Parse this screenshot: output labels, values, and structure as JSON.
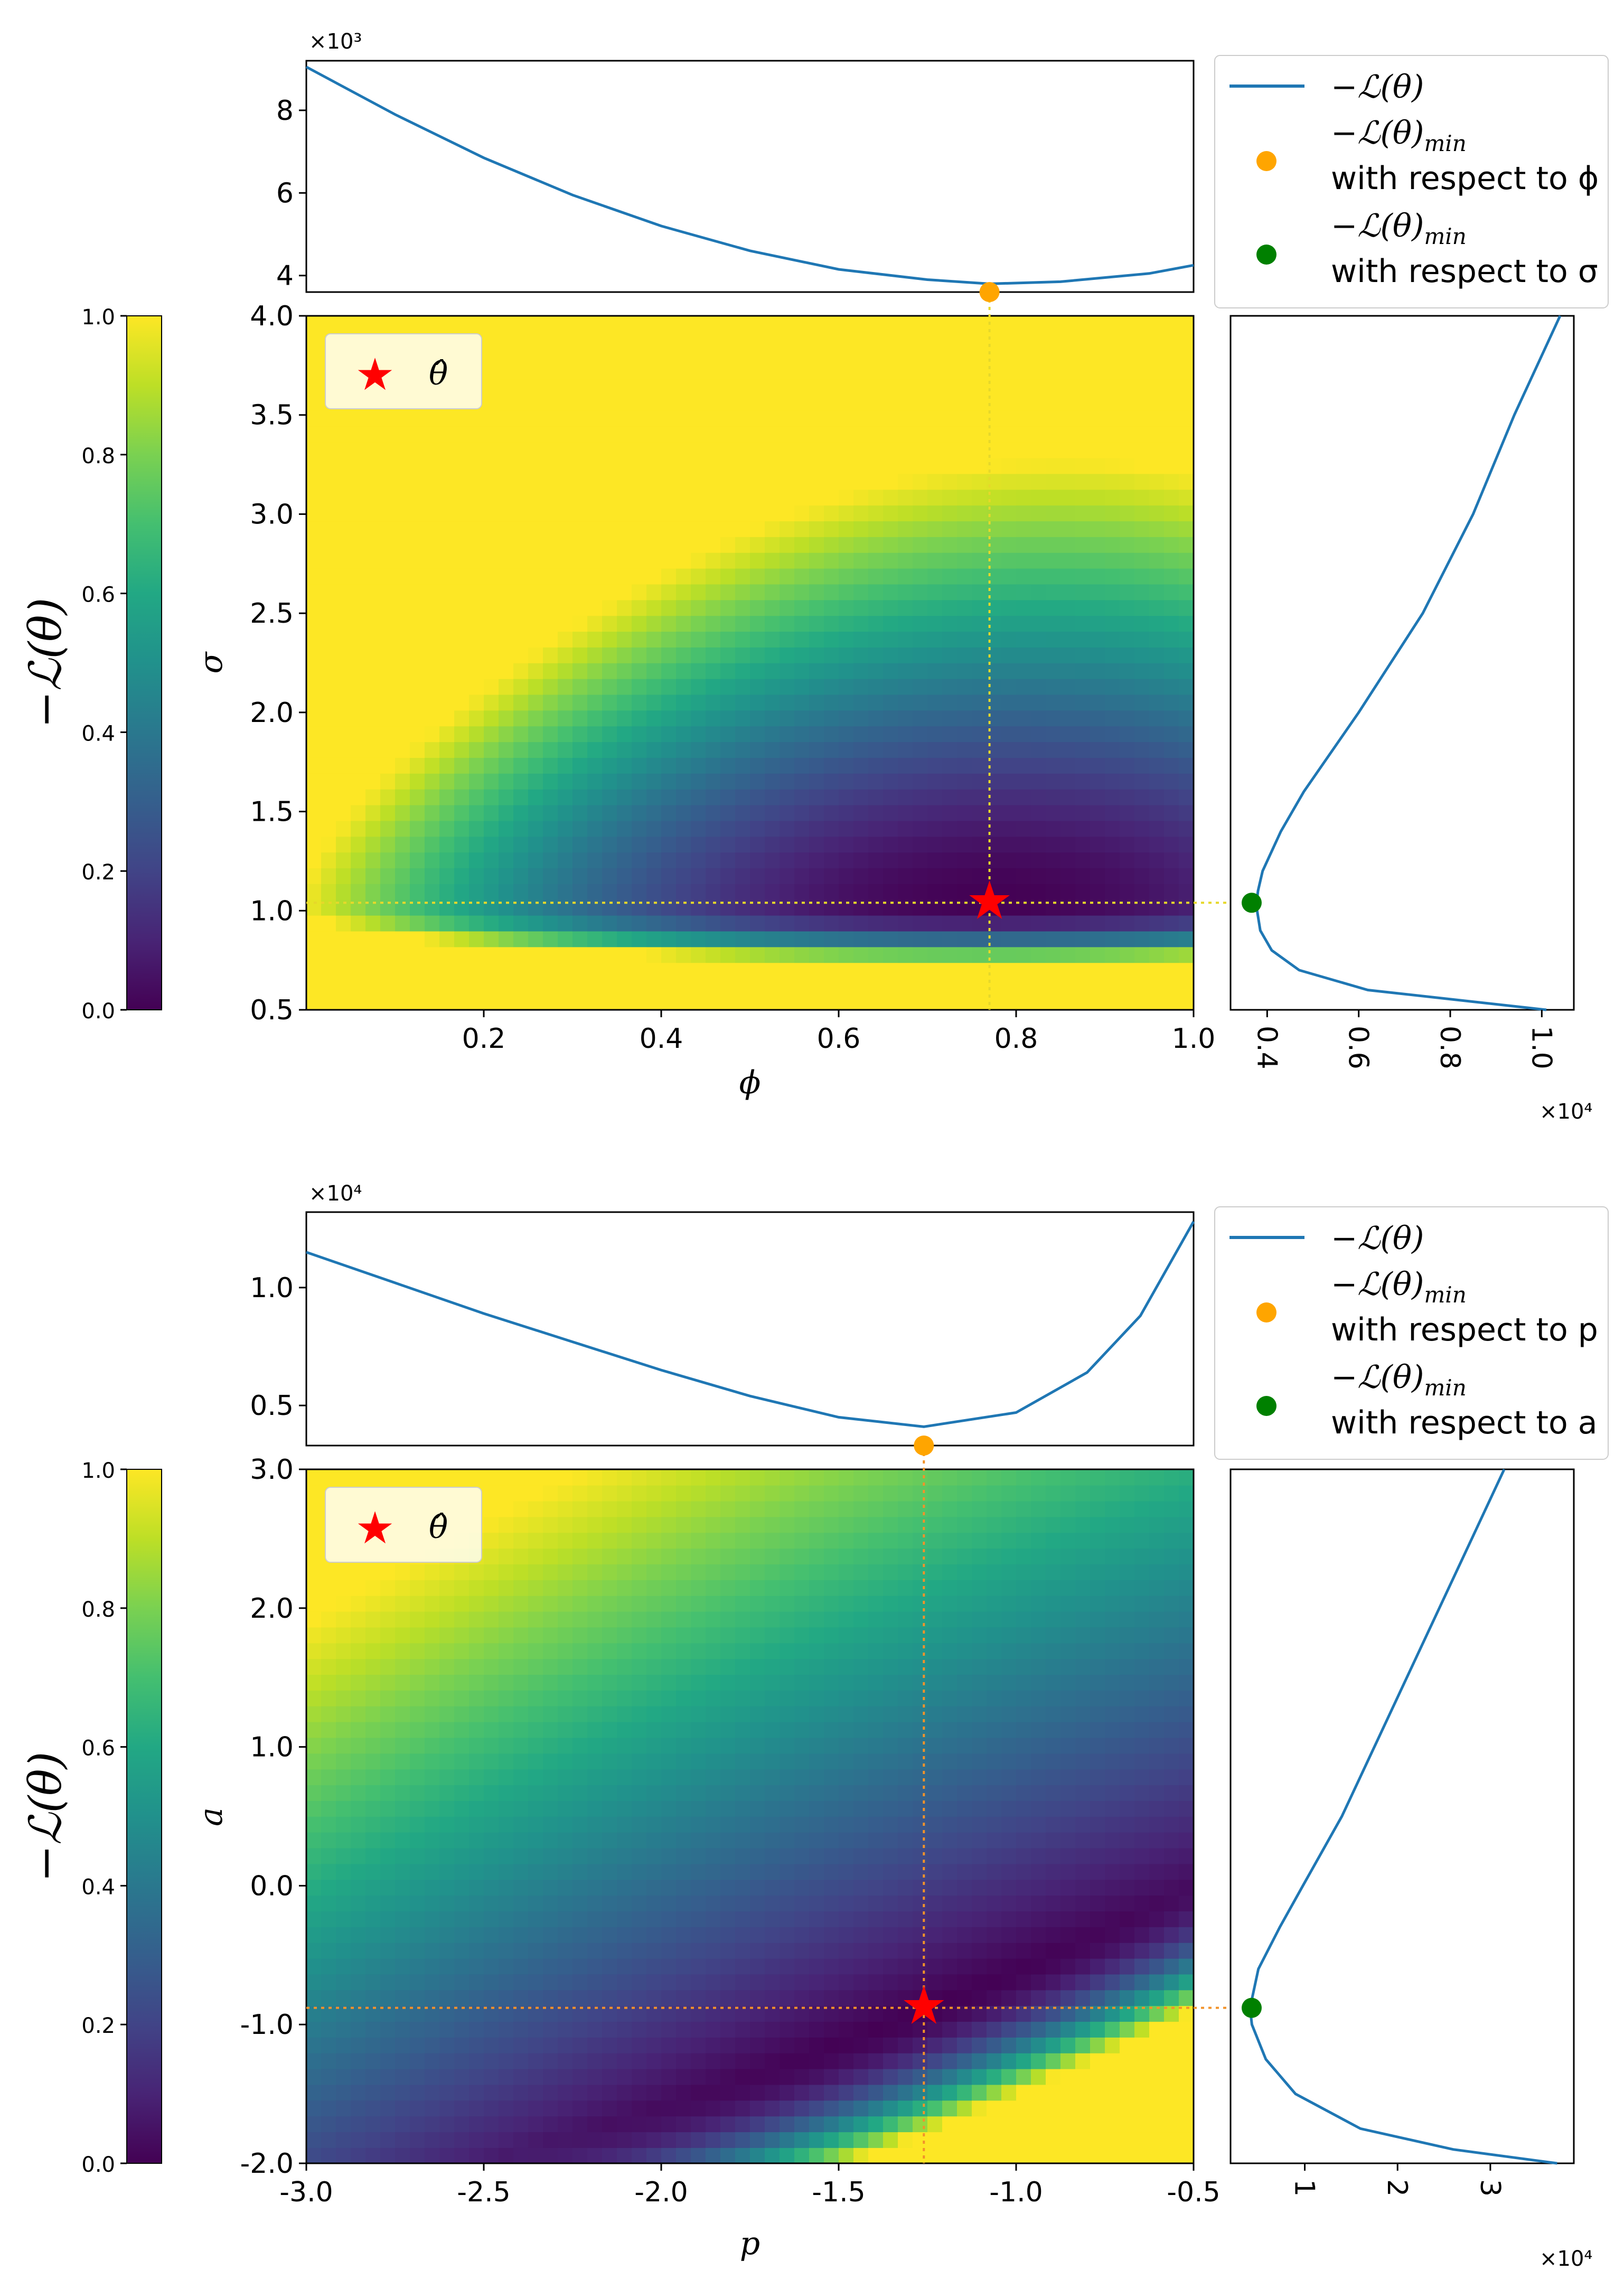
{
  "colors": {
    "line": "#1f77b4",
    "orange": "#ffa500",
    "green": "#008000",
    "red": "#ff0000",
    "yellow_guide": "#e6d82a",
    "orange_guide": "#f2922a"
  },
  "chart_data": [
    {
      "type": "heatmap",
      "panel": "top",
      "xlabel": "ϕ",
      "ylabel": "σ",
      "xlim": [
        0.0,
        1.0
      ],
      "ylim": [
        0.5,
        4.0
      ],
      "x_ticks": [
        "0.2",
        "0.4",
        "0.6",
        "0.8",
        "1.0"
      ],
      "x_tick_values": [
        0.2,
        0.4,
        0.6,
        0.8,
        1.0
      ],
      "y_ticks": [
        "0.5",
        "1.0",
        "1.5",
        "2.0",
        "2.5",
        "3.0",
        "3.5",
        "4.0"
      ],
      "y_tick_values": [
        0.5,
        1.0,
        1.5,
        2.0,
        2.5,
        3.0,
        3.5,
        4.0
      ],
      "optimum": {
        "x": 0.77,
        "y": 1.04
      },
      "legend_heatmap": {
        "label": "θ̂"
      },
      "colorbar": {
        "label": "−ℒ(θ)",
        "ticks": [
          "0.0",
          "0.2",
          "0.4",
          "0.6",
          "0.8",
          "1.0"
        ],
        "tick_values": [
          0.0,
          0.2,
          0.4,
          0.6,
          0.8,
          1.0
        ]
      },
      "top_profile": {
        "multiplier": "×10³",
        "y_ticks": [
          "4",
          "6",
          "8"
        ],
        "y_tick_values": [
          4,
          6,
          8
        ],
        "ylim": [
          3.6,
          9.2
        ],
        "x": [
          0.0,
          0.1,
          0.2,
          0.3,
          0.4,
          0.5,
          0.6,
          0.7,
          0.77,
          0.85,
          0.95,
          1.0
        ],
        "y": [
          9.05,
          7.9,
          6.85,
          5.95,
          5.2,
          4.6,
          4.15,
          3.9,
          3.8,
          3.85,
          4.05,
          4.25
        ]
      },
      "side_profile": {
        "multiplier": "×10⁴",
        "x_ticks": [
          "0.4",
          "0.6",
          "0.8",
          "1.0"
        ],
        "x_tick_values": [
          0.4,
          0.6,
          0.8,
          1.0
        ],
        "xlim": [
          0.32,
          1.07
        ],
        "sigma": [
          0.5,
          0.6,
          0.7,
          0.8,
          0.9,
          1.0,
          1.04,
          1.1,
          1.2,
          1.4,
          1.6,
          2.0,
          2.5,
          3.0,
          3.5,
          4.0
        ],
        "value": [
          1.01,
          0.62,
          0.47,
          0.41,
          0.385,
          0.378,
          0.377,
          0.38,
          0.39,
          0.43,
          0.48,
          0.6,
          0.74,
          0.85,
          0.94,
          1.04
        ]
      },
      "legend": {
        "line_label": "−ℒ(θ)",
        "min_label": "−ℒ(θ)",
        "min_sub": "min",
        "wrt_x": "with respect to ϕ",
        "wrt_y": "with respect to σ"
      }
    },
    {
      "type": "heatmap",
      "panel": "bottom",
      "xlabel": "p",
      "ylabel": "a",
      "xlim": [
        -3.0,
        -0.5
      ],
      "ylim": [
        -2.0,
        3.0
      ],
      "x_ticks": [
        "-3.0",
        "-2.5",
        "-2.0",
        "-1.5",
        "-1.0",
        "-0.5"
      ],
      "x_tick_values": [
        -3.0,
        -2.5,
        -2.0,
        -1.5,
        -1.0,
        -0.5
      ],
      "y_ticks": [
        "-2.0",
        "-1.0",
        "0.0",
        "1.0",
        "2.0",
        "3.0"
      ],
      "y_tick_values": [
        -2.0,
        -1.0,
        0.0,
        1.0,
        2.0,
        3.0
      ],
      "optimum": {
        "x": -1.26,
        "y": -0.88
      },
      "legend_heatmap": {
        "label": "θ̂"
      },
      "colorbar": {
        "label": "−ℒ(θ)",
        "ticks": [
          "0.0",
          "0.2",
          "0.4",
          "0.6",
          "0.8",
          "1.0"
        ],
        "tick_values": [
          0.0,
          0.2,
          0.4,
          0.6,
          0.8,
          1.0
        ]
      },
      "top_profile": {
        "multiplier": "×10⁴",
        "y_ticks": [
          "0.5",
          "1.0"
        ],
        "y_tick_values": [
          0.5,
          1.0
        ],
        "ylim": [
          0.33,
          1.32
        ],
        "x": [
          -3.0,
          -2.75,
          -2.5,
          -2.25,
          -2.0,
          -1.75,
          -1.5,
          -1.26,
          -1.0,
          -0.8,
          -0.65,
          -0.5
        ],
        "y": [
          1.15,
          1.02,
          0.89,
          0.77,
          0.65,
          0.54,
          0.45,
          0.41,
          0.47,
          0.64,
          0.88,
          1.28
        ]
      },
      "side_profile": {
        "multiplier": "×10⁴",
        "x_ticks": [
          "1",
          "2",
          "3"
        ],
        "x_tick_values": [
          1,
          2,
          3
        ],
        "xlim": [
          0.2,
          3.9
        ],
        "a": [
          -2.0,
          -1.9,
          -1.75,
          -1.5,
          -1.25,
          -1.0,
          -0.88,
          -0.6,
          -0.3,
          0.0,
          0.5,
          1.0,
          1.5,
          2.0,
          2.5,
          3.0
        ],
        "value": [
          3.72,
          2.6,
          1.6,
          0.9,
          0.58,
          0.43,
          0.41,
          0.5,
          0.73,
          0.98,
          1.4,
          1.75,
          2.1,
          2.45,
          2.8,
          3.15
        ]
      },
      "legend": {
        "line_label": "−ℒ(θ)",
        "min_label": "−ℒ(θ)",
        "min_sub": "min",
        "wrt_x": "with respect to p",
        "wrt_y": "with respect to a"
      }
    }
  ]
}
